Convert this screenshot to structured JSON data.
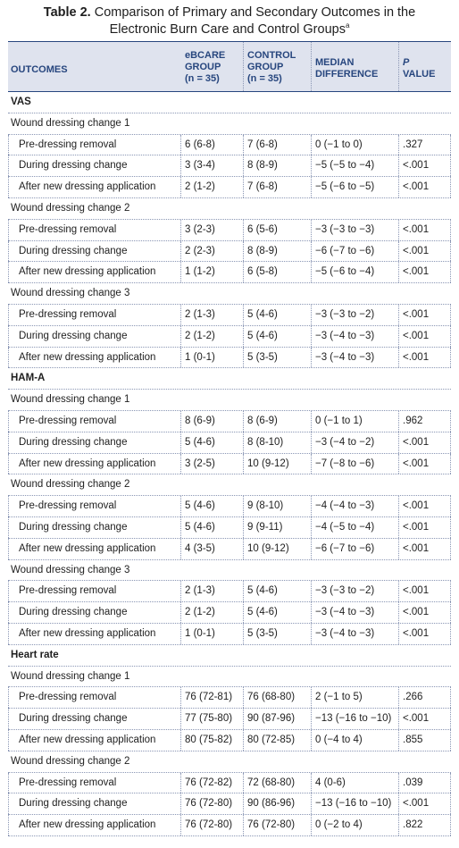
{
  "table": {
    "title_lead": "Table 2.",
    "title_rest": " Comparison of Primary and Secondary Outcomes in the",
    "title_line2": "Electronic Burn Care and Control Groups",
    "title_footnote": "a",
    "headers": {
      "outcomes": "OUTCOMES",
      "ebcare": [
        "eBCARE",
        "GROUP",
        "(n = 35)"
      ],
      "control": [
        "CONTROL",
        "GROUP",
        "(n = 35)"
      ],
      "median": [
        "MEDIAN",
        "DIFFERENCE"
      ],
      "p_symbol": "P",
      "p_value": "VALUE"
    },
    "rows": [
      {
        "type": "section",
        "label": "VAS"
      },
      {
        "type": "group",
        "label": "Wound dressing change 1"
      },
      {
        "type": "data",
        "label": "Pre-dressing removal",
        "ebcare": "6 (6-8)",
        "control": "7 (6-8)",
        "median": "0 (−1 to 0)",
        "p": ".327"
      },
      {
        "type": "data",
        "label": "During dressing change",
        "ebcare": "3 (3-4)",
        "control": "8 (8-9)",
        "median": "−5 (−5 to −4)",
        "p": "<.001"
      },
      {
        "type": "data",
        "label": "After new dressing application",
        "ebcare": "2 (1-2)",
        "control": "7 (6-8)",
        "median": "−5 (−6 to −5)",
        "p": "<.001"
      },
      {
        "type": "group",
        "label": "Wound dressing change 2"
      },
      {
        "type": "data",
        "label": "Pre-dressing removal",
        "ebcare": "3 (2-3)",
        "control": "6 (5-6)",
        "median": "−3 (−3 to −3)",
        "p": "<.001"
      },
      {
        "type": "data",
        "label": "During dressing change",
        "ebcare": "2 (2-3)",
        "control": "8 (8-9)",
        "median": "−6 (−7 to −6)",
        "p": "<.001"
      },
      {
        "type": "data",
        "label": "After new dressing application",
        "ebcare": "1 (1-2)",
        "control": "6 (5-8)",
        "median": "−5 (−6 to −4)",
        "p": "<.001"
      },
      {
        "type": "group",
        "label": "Wound dressing change 3"
      },
      {
        "type": "data",
        "label": "Pre-dressing removal",
        "ebcare": "2 (1-3)",
        "control": "5 (4-6)",
        "median": "−3 (−3 to −2)",
        "p": "<.001"
      },
      {
        "type": "data",
        "label": "During dressing change",
        "ebcare": "2 (1-2)",
        "control": "5 (4-6)",
        "median": "−3 (−4 to −3)",
        "p": "<.001"
      },
      {
        "type": "data",
        "label": "After new dressing application",
        "ebcare": "1 (0-1)",
        "control": "5 (3-5)",
        "median": "−3 (−4 to −3)",
        "p": "<.001"
      },
      {
        "type": "section",
        "label": "HAM-A"
      },
      {
        "type": "group",
        "label": "Wound dressing change 1"
      },
      {
        "type": "data",
        "label": "Pre-dressing removal",
        "ebcare": "8 (6-9)",
        "control": "8 (6-9)",
        "median": "0 (−1 to 1)",
        "p": ".962"
      },
      {
        "type": "data",
        "label": "During dressing change",
        "ebcare": "5 (4-6)",
        "control": "8 (8-10)",
        "median": "−3 (−4 to −2)",
        "p": "<.001"
      },
      {
        "type": "data",
        "label": "After new dressing application",
        "ebcare": "3 (2-5)",
        "control": "10 (9-12)",
        "median": "−7 (−8 to −6)",
        "p": "<.001"
      },
      {
        "type": "group",
        "label": "Wound dressing change 2"
      },
      {
        "type": "data",
        "label": "Pre-dressing removal",
        "ebcare": "5 (4-6)",
        "control": "9 (8-10)",
        "median": "−4 (−4 to −3)",
        "p": "<.001"
      },
      {
        "type": "data",
        "label": "During dressing change",
        "ebcare": "5 (4-6)",
        "control": "9 (9-11)",
        "median": "−4 (−5 to −4)",
        "p": "<.001"
      },
      {
        "type": "data",
        "label": "After new dressing application",
        "ebcare": "4 (3-5)",
        "control": "10 (9-12)",
        "median": "−6 (−7 to −6)",
        "p": "<.001"
      },
      {
        "type": "group",
        "label": "Wound dressing change 3"
      },
      {
        "type": "data",
        "label": "Pre-dressing removal",
        "ebcare": "2 (1-3)",
        "control": "5 (4-6)",
        "median": "−3 (−3 to −2)",
        "p": "<.001"
      },
      {
        "type": "data",
        "label": "During dressing change",
        "ebcare": "2 (1-2)",
        "control": "5 (4-6)",
        "median": "−3 (−4 to −3)",
        "p": "<.001"
      },
      {
        "type": "data",
        "label": "After new dressing application",
        "ebcare": "1 (0-1)",
        "control": "5 (3-5)",
        "median": "−3 (−4 to −3)",
        "p": "<.001"
      },
      {
        "type": "section",
        "label": "Heart rate"
      },
      {
        "type": "group",
        "label": "Wound dressing change 1"
      },
      {
        "type": "data",
        "label": "Pre-dressing removal",
        "ebcare": "76 (72-81)",
        "control": "76 (68-80)",
        "median": "2 (−1 to 5)",
        "p": ".266"
      },
      {
        "type": "data",
        "label": "During dressing change",
        "ebcare": "77 (75-80)",
        "control": "90 (87-96)",
        "median": "−13 (−16 to −10)",
        "p": "<.001"
      },
      {
        "type": "data",
        "label": "After new dressing application",
        "ebcare": "80 (75-82)",
        "control": "80 (72-85)",
        "median": "0 (−4 to 4)",
        "p": ".855"
      },
      {
        "type": "group",
        "label": "Wound dressing change 2"
      },
      {
        "type": "data",
        "label": "Pre-dressing removal",
        "ebcare": "76 (72-82)",
        "control": "72 (68-80)",
        "median": "4 (0-6)",
        "p": ".039"
      },
      {
        "type": "data",
        "label": "During dressing change",
        "ebcare": "76 (72-80)",
        "control": "90 (86-96)",
        "median": "−13 (−16 to −10)",
        "p": "<.001"
      },
      {
        "type": "data",
        "label": "After new dressing application",
        "ebcare": "76 (72-80)",
        "control": "76 (72-80)",
        "median": "0 (−2 to 4)",
        "p": ".822"
      }
    ]
  }
}
